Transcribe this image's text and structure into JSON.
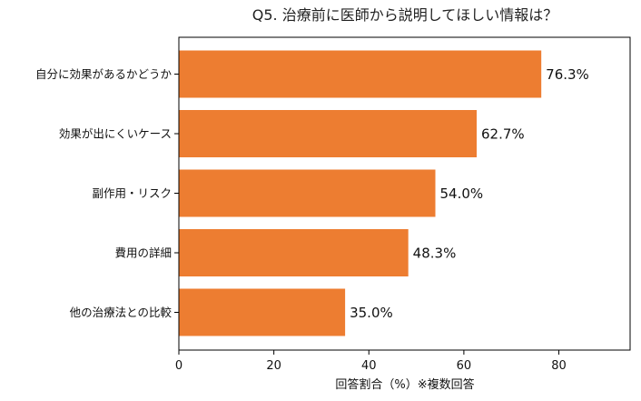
{
  "chart_data": {
    "type": "bar",
    "orientation": "horizontal",
    "title": "Q5. 治療前に医師から説明してほしい情報は？",
    "xlabel": "回答割合（%）※複数回答",
    "ylabel": "",
    "categories": [
      "自分に効果があるかどうか",
      "効果が出にくいケース",
      "副作用・リスク",
      "費用の詳細",
      "他の治療法との比較"
    ],
    "values": [
      76.3,
      62.7,
      54.0,
      48.3,
      35.0
    ],
    "value_labels": [
      "76.3%",
      "62.7%",
      "54.0%",
      "48.3%",
      "35.0%"
    ],
    "xlim": [
      0,
      95
    ],
    "xticks": [
      0,
      20,
      40,
      60,
      80
    ],
    "xtick_labels": [
      "0",
      "20",
      "40",
      "60",
      "80"
    ],
    "bar_color": "#ed7d31",
    "grid": false,
    "legend": "none"
  }
}
